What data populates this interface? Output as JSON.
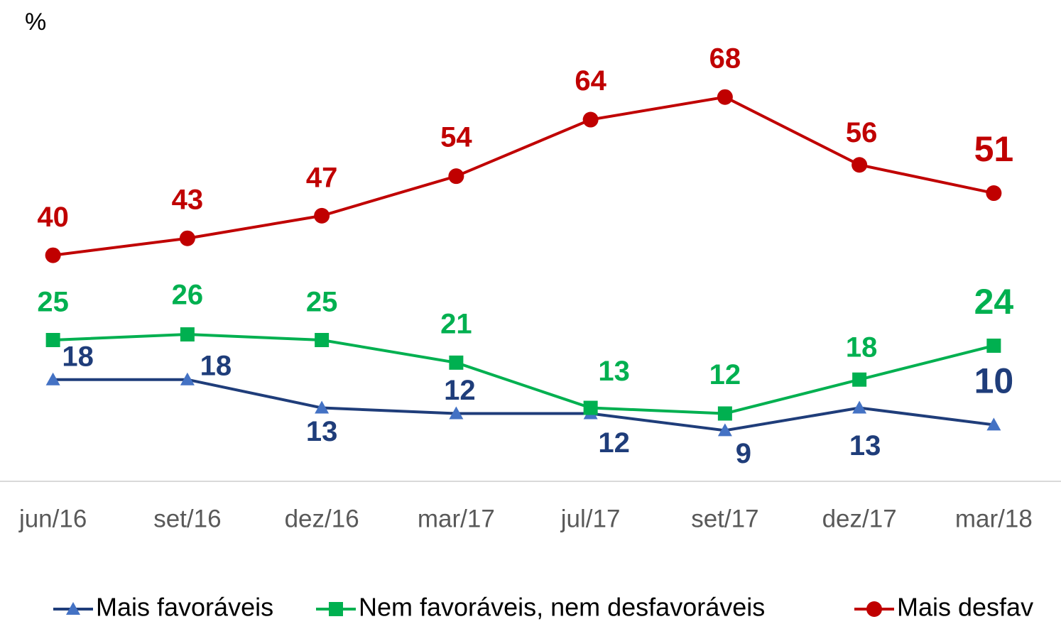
{
  "chart_data": {
    "type": "line",
    "y_label": "%",
    "categories": [
      "jun/16",
      "set/16",
      "dez/16",
      "mar/17",
      "jul/17",
      "set/17",
      "dez/17",
      "mar/18"
    ],
    "ylim": [
      0,
      85
    ],
    "series": [
      {
        "name": "Mais favoráveis",
        "color": "#1f3d7a",
        "marker_color": "#4472c4",
        "marker": "triangle",
        "values": [
          18,
          18,
          13,
          12,
          12,
          9,
          13,
          10
        ]
      },
      {
        "name": "Nem favoráveis, nem desfavoráveis",
        "color": "#00b050",
        "marker_color": "#00b050",
        "marker": "square",
        "values": [
          25,
          26,
          25,
          21,
          13,
          12,
          18,
          24
        ]
      },
      {
        "name": "Mais desfav",
        "color": "#c00000",
        "marker_color": "#c00000",
        "marker": "circle",
        "values": [
          40,
          43,
          47,
          54,
          64,
          68,
          56,
          51
        ]
      }
    ]
  }
}
